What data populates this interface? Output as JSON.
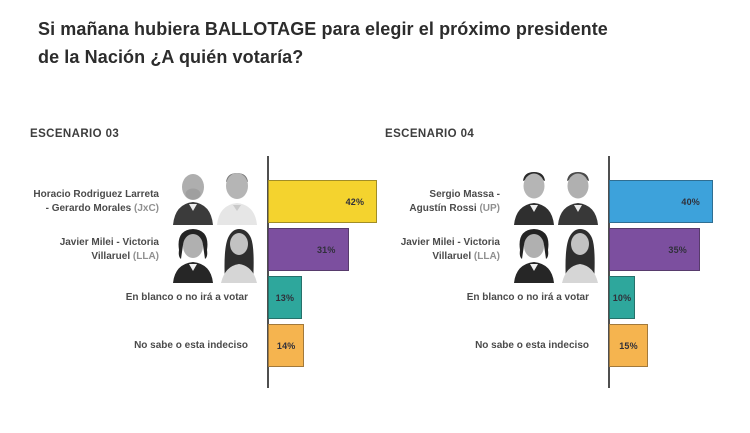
{
  "title": "Si mañana hubiera BALLOTAGE para elegir el próximo presidente\nde la Nación ¿A quién votaría?",
  "colors": {
    "yellow_jxc": "#F4D32E",
    "purple_lla": "#7C4F9F",
    "teal_blank": "#2EA79C",
    "orange_undecided": "#F5B44F",
    "blue_up": "#3DA2DB",
    "axis": "#4F4F4F",
    "title_text": "#2C2C2C",
    "label_text": "#4B4B4B"
  },
  "chart_data": [
    {
      "type": "bar",
      "orientation": "horizontal",
      "title": "ESCENARIO 03",
      "unit": "%",
      "xlim": [
        0,
        45
      ],
      "grid": false,
      "legend": "none",
      "categories": [
        "Horacio Rodriguez Larreta - Gerardo Morales (JxC)",
        "Javier Milei - Victoria Villaruel (LLA)",
        "En blanco o no irá a votar",
        "No sabe o esta indeciso"
      ],
      "values": [
        42,
        31,
        13,
        14
      ],
      "bars": [
        {
          "line1": "Horacio Rodriguez Larreta",
          "line2": "- Gerardo Morales",
          "party": "(JxC)",
          "value": 42,
          "value_label": "42%",
          "color": "#F4D32E",
          "photo": "larreta-morales"
        },
        {
          "line1": "Javier Milei - Victoria",
          "line2": "Villaruel",
          "party": "(LLA)",
          "value": 31,
          "value_label": "31%",
          "color": "#7C4F9F",
          "photo": "milei-villarruel"
        },
        {
          "line1": "En blanco o no irá a votar",
          "value": 13,
          "value_label": "13%",
          "color": "#2EA79C"
        },
        {
          "line1": "No sabe o esta indeciso",
          "value": 14,
          "value_label": "14%",
          "color": "#F5B44F"
        }
      ]
    },
    {
      "type": "bar",
      "orientation": "horizontal",
      "title": "ESCENARIO 04",
      "unit": "%",
      "xlim": [
        0,
        45
      ],
      "grid": false,
      "legend": "none",
      "categories": [
        "Sergio Massa - Agustín Rossi (UP)",
        "Javier Milei - Victoria Villaruel (LLA)",
        "En blanco o no irá a votar",
        "No sabe o esta indeciso"
      ],
      "values": [
        40,
        35,
        10,
        15
      ],
      "bars": [
        {
          "line1": "Sergio Massa -",
          "line2": "Agustín Rossi",
          "party": "(UP)",
          "value": 40,
          "value_label": "40%",
          "color": "#3DA2DB",
          "photo": "massa-rossi"
        },
        {
          "line1": "Javier Milei - Victoria",
          "line2": "Villaruel",
          "party": "(LLA)",
          "value": 35,
          "value_label": "35%",
          "color": "#7C4F9F",
          "photo": "milei-villarruel"
        },
        {
          "line1": "En blanco o no irá a votar",
          "value": 10,
          "value_label": "10%",
          "color": "#2EA79C"
        },
        {
          "line1": "No sabe o esta indeciso",
          "value": 15,
          "value_label": "15%",
          "color": "#F5B44F"
        }
      ]
    }
  ]
}
